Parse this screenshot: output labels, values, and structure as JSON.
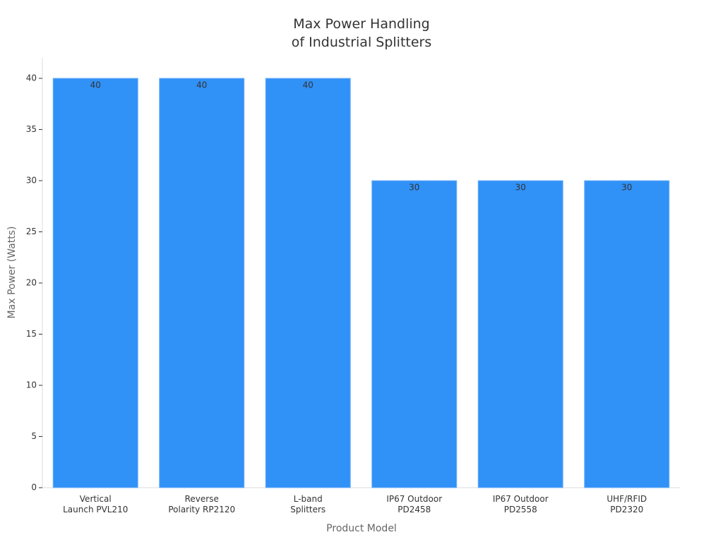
{
  "chart_data": {
    "type": "bar",
    "title": "Max Power Handling\nof Industrial Splitters",
    "x_label": "Product Model",
    "y_label": "Max Power (Watts)",
    "categories": [
      "Vertical\nLaunch PVL210",
      "Reverse\nPolarity RP2120",
      "L-band\nSplitters",
      "IP67 Outdoor\nPD2458",
      "IP67 Outdoor\nPD2558",
      "UHF/RFID\nPD2320"
    ],
    "values": [
      40,
      40,
      40,
      30,
      30,
      30
    ],
    "color": "#3091f7",
    "ylim": [
      0,
      42
    ],
    "yticks": [
      0,
      5,
      10,
      15,
      20,
      25,
      30,
      35,
      40
    ],
    "grid": false
  }
}
